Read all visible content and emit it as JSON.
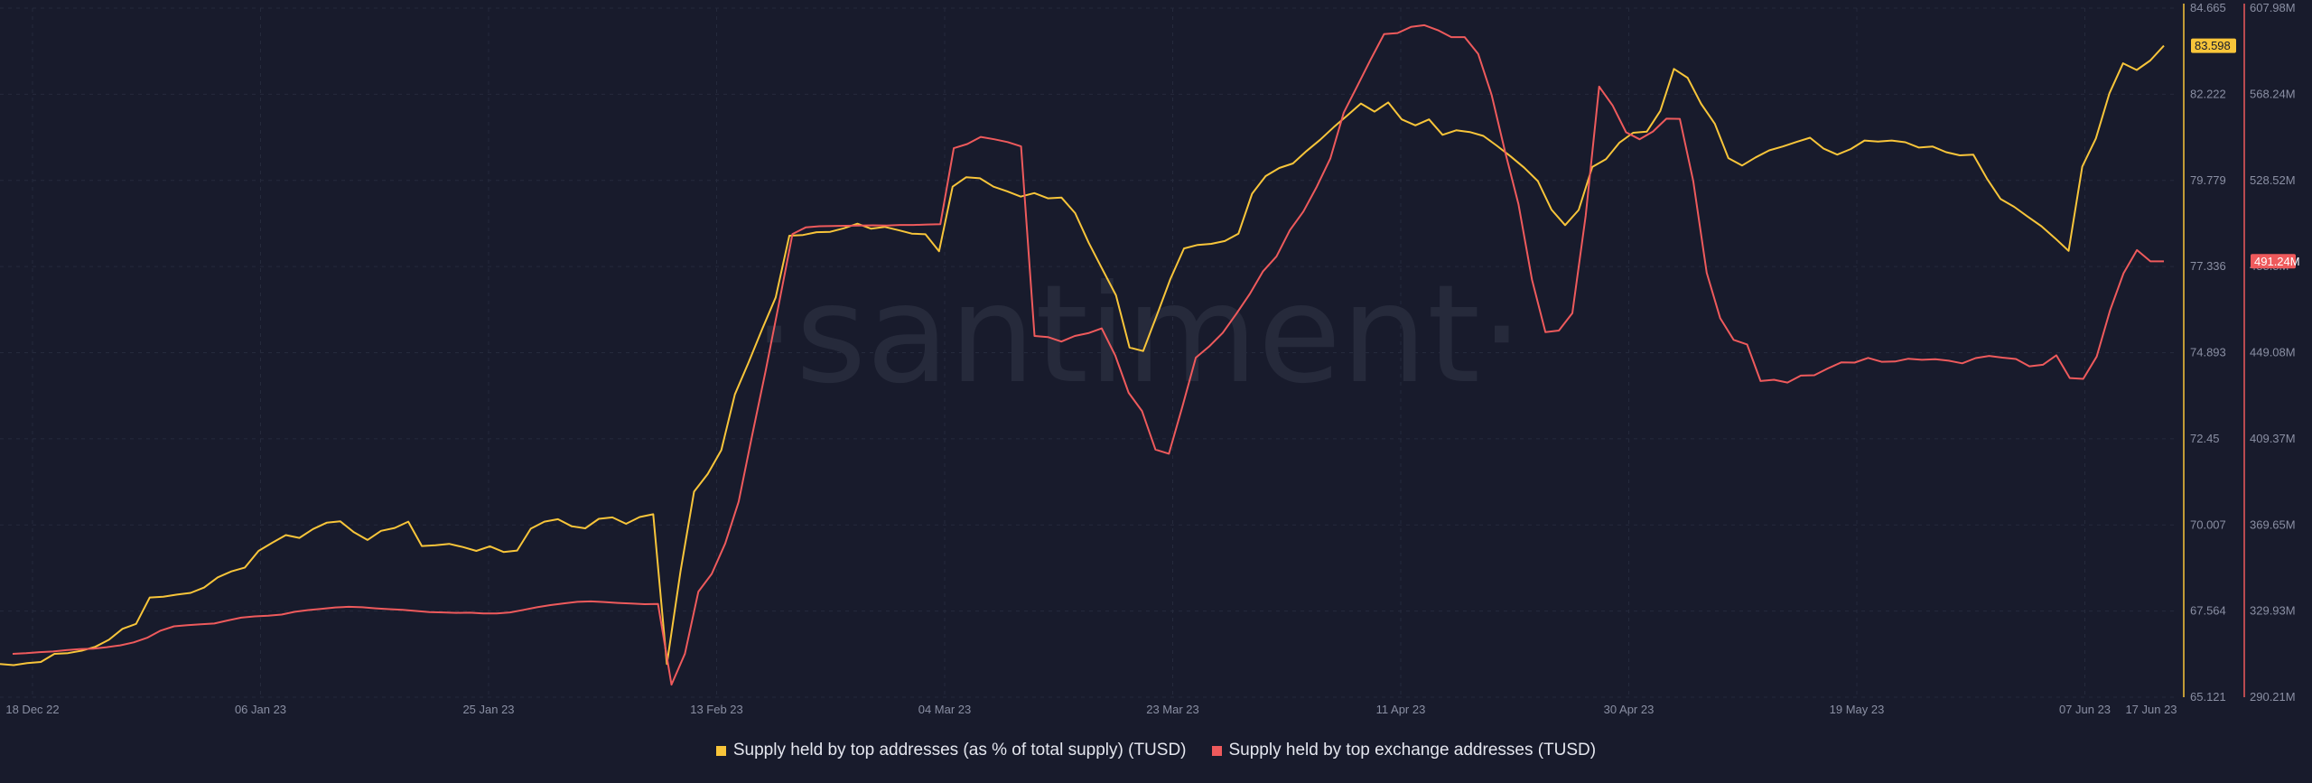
{
  "watermark": "·santiment·",
  "chart_data": {
    "type": "line",
    "x_ticks": [
      "18 Dec 22",
      "06 Jan 23",
      "25 Jan 23",
      "13 Feb 23",
      "04 Mar 23",
      "23 Mar 23",
      "11 Apr 23",
      "30 Apr 23",
      "19 May 23",
      "07 Jun 23",
      "17 Jun 23"
    ],
    "left_axis": {
      "ticks": [
        "84.665",
        "82.222",
        "79.779",
        "77.336",
        "74.893",
        "72.45",
        "70.007",
        "67.564",
        "65.121"
      ],
      "range": [
        65.121,
        84.665
      ],
      "last_value": "83.598",
      "color": "#f8c53a"
    },
    "right_axis": {
      "ticks": [
        "607.98M",
        "568.24M",
        "528.52M",
        "488.8M",
        "449.08M",
        "409.37M",
        "369.65M",
        "329.93M",
        "290.21M"
      ],
      "range": [
        290.21,
        607.98
      ],
      "last_value": "491.24M",
      "color": "#ee5a5c"
    },
    "series": [
      {
        "name": "Supply held by top addresses (as % of total supply) (TUSD)",
        "axis": "left",
        "color": "#f8c53a",
        "values": [
          66.06,
          66.03,
          66.09,
          66.12,
          66.35,
          66.37,
          66.44,
          66.55,
          66.75,
          67.06,
          67.2,
          67.95,
          67.97,
          68.03,
          68.08,
          68.23,
          68.52,
          68.69,
          68.8,
          69.27,
          69.5,
          69.72,
          69.64,
          69.89,
          70.07,
          70.11,
          69.8,
          69.58,
          69.84,
          69.92,
          70.1,
          69.41,
          69.43,
          69.47,
          69.38,
          69.27,
          69.4,
          69.24,
          69.28,
          69.9,
          70.1,
          70.17,
          69.97,
          69.91,
          70.18,
          70.22,
          70.04,
          70.23,
          70.31,
          66.06,
          68.69,
          70.95,
          71.45,
          72.13,
          73.71,
          74.61,
          75.56,
          76.46,
          78.21,
          78.23,
          78.31,
          78.32,
          78.42,
          78.55,
          78.41,
          78.46,
          78.37,
          78.27,
          78.25,
          77.77,
          79.6,
          79.87,
          79.84,
          79.6,
          79.47,
          79.32,
          79.42,
          79.27,
          79.29,
          78.85,
          78.01,
          77.26,
          76.52,
          75.04,
          74.94,
          75.95,
          76.98,
          77.85,
          77.95,
          77.98,
          78.06,
          78.27,
          79.4,
          79.9,
          80.13,
          80.26,
          80.61,
          80.93,
          81.29,
          81.62,
          81.96,
          81.73,
          81.99,
          81.51,
          81.34,
          81.51,
          81.07,
          81.2,
          81.15,
          81.04,
          80.76,
          80.46,
          80.14,
          79.76,
          78.95,
          78.51,
          78.94,
          80.16,
          80.38,
          80.85,
          81.13,
          81.16,
          81.75,
          82.94,
          82.69,
          81.95,
          81.39,
          80.41,
          80.2,
          80.43,
          80.63,
          80.74,
          80.87,
          80.99,
          80.68,
          80.51,
          80.67,
          80.91,
          80.88,
          80.91,
          80.86,
          80.71,
          80.74,
          80.58,
          80.49,
          80.51,
          79.83,
          79.25,
          79.03,
          78.75,
          78.48,
          78.14,
          77.78,
          80.17,
          80.97,
          82.25,
          83.1,
          82.91,
          83.18,
          83.6
        ]
      },
      {
        "name": "Supply held by top exchange addresses (TUSD)",
        "axis": "right",
        "color": "#ee5a5c",
        "values": [
          310.2,
          310.5,
          311.0,
          311.3,
          311.9,
          312.4,
          312.6,
          313.3,
          314.1,
          315.5,
          317.6,
          320.9,
          322.9,
          323.4,
          323.8,
          324.2,
          325.6,
          326.9,
          327.5,
          327.8,
          328.3,
          329.6,
          330.4,
          331.0,
          331.6,
          331.9,
          331.7,
          331.2,
          330.8,
          330.5,
          330.0,
          329.5,
          329.3,
          329.1,
          329.2,
          328.8,
          328.8,
          329.3,
          330.5,
          331.7,
          332.7,
          333.5,
          334.2,
          334.4,
          334.1,
          333.7,
          333.4,
          333.1,
          333.2,
          296.0,
          310.3,
          338.9,
          347.1,
          361.1,
          380.4,
          410.9,
          440.6,
          471.9,
          503.8,
          506.9,
          507.4,
          507.5,
          507.6,
          507.7,
          507.8,
          507.7,
          508.0,
          508.0,
          508.2,
          508.3,
          543.4,
          545.3,
          548.6,
          547.5,
          546.2,
          544.2,
          456.8,
          456.3,
          454.2,
          456.8,
          458.1,
          460.3,
          447.9,
          430.6,
          422.2,
          404.4,
          402.5,
          424.2,
          446.8,
          452.0,
          458.2,
          466.9,
          476.1,
          486.6,
          493.5,
          505.6,
          514.2,
          525.7,
          538.6,
          559.8,
          572.0,
          584.2,
          596.0,
          596.5,
          599.3,
          600.1,
          597.8,
          594.6,
          594.6,
          586.9,
          568.0,
          541.8,
          517.5,
          482.8,
          458.6,
          459.3,
          467.3,
          512.3,
          571.8,
          563.1,
          550.7,
          547.5,
          551.1,
          557.0,
          556.9,
          528.2,
          485.9,
          465.0,
          455.0,
          452.9,
          436.0,
          436.6,
          435.3,
          438.5,
          438.7,
          441.8,
          444.6,
          444.5,
          446.7,
          444.9,
          445.0,
          446.3,
          445.8,
          446.1,
          445.4,
          444.2,
          446.6,
          447.6,
          446.8,
          446.2,
          442.8,
          443.5,
          447.9,
          437.4,
          437.0,
          447.3,
          468.6,
          485.7,
          496.4,
          491.2,
          491.2
        ]
      }
    ],
    "legend": [
      "Supply held by top addresses (as % of total supply) (TUSD)",
      "Supply held by top exchange addresses (TUSD)"
    ],
    "legend_placement": "bottom-center",
    "grid": true
  }
}
